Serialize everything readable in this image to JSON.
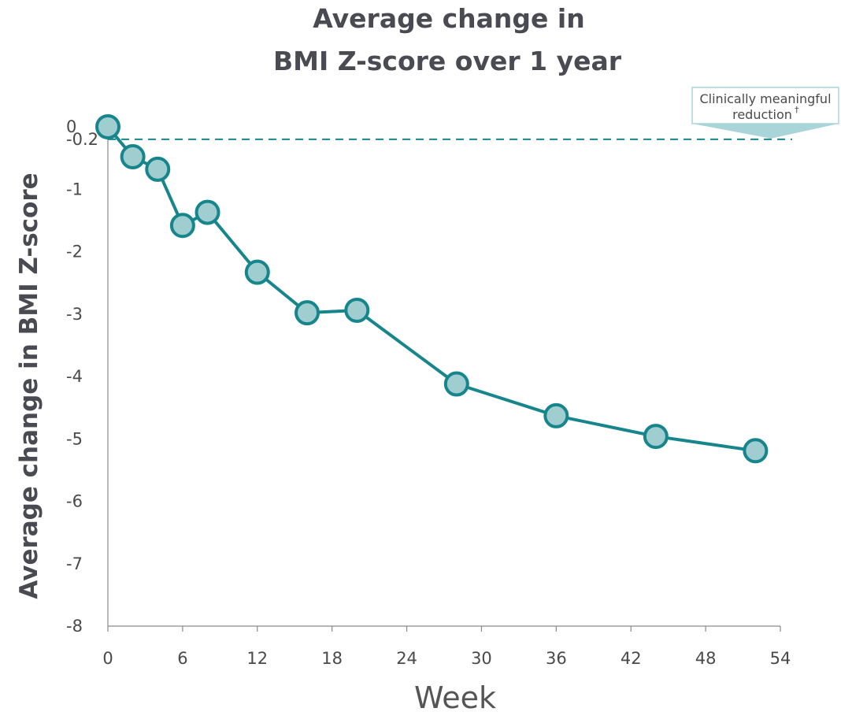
{
  "chart_data": {
    "type": "line",
    "title_line1": "Average change in",
    "title_line2": "BMI Z-score over 1 year",
    "xlabel": "Week",
    "ylabel": "Average change in BMI Z-score",
    "xlim": [
      0,
      54
    ],
    "ylim": [
      -8,
      0
    ],
    "xticks": [
      0,
      6,
      12,
      18,
      24,
      30,
      36,
      42,
      48,
      54
    ],
    "yticks": [
      0,
      -0.2,
      -1,
      -2,
      -3,
      -4,
      -5,
      -6,
      -7,
      -8
    ],
    "grid": false,
    "series": [
      {
        "x": [
          0,
          2,
          4,
          6,
          8,
          12,
          16,
          20,
          28,
          36,
          44,
          52
        ],
        "y": [
          0,
          -0.48,
          -0.68,
          -1.58,
          -1.37,
          -2.33,
          -2.98,
          -2.94,
          -4.12,
          -4.63,
          -4.96,
          -5.19
        ]
      }
    ],
    "reference_line": {
      "y": -0.2
    },
    "annotation": {
      "line1": "Clinically meaningful",
      "line2": "reduction",
      "mark": "†"
    },
    "colors": {
      "line": "#17868c",
      "marker_fill": "#9fcdd0",
      "marker_edge": "#17868c",
      "annotation_fill": "#a9d5d9"
    }
  }
}
